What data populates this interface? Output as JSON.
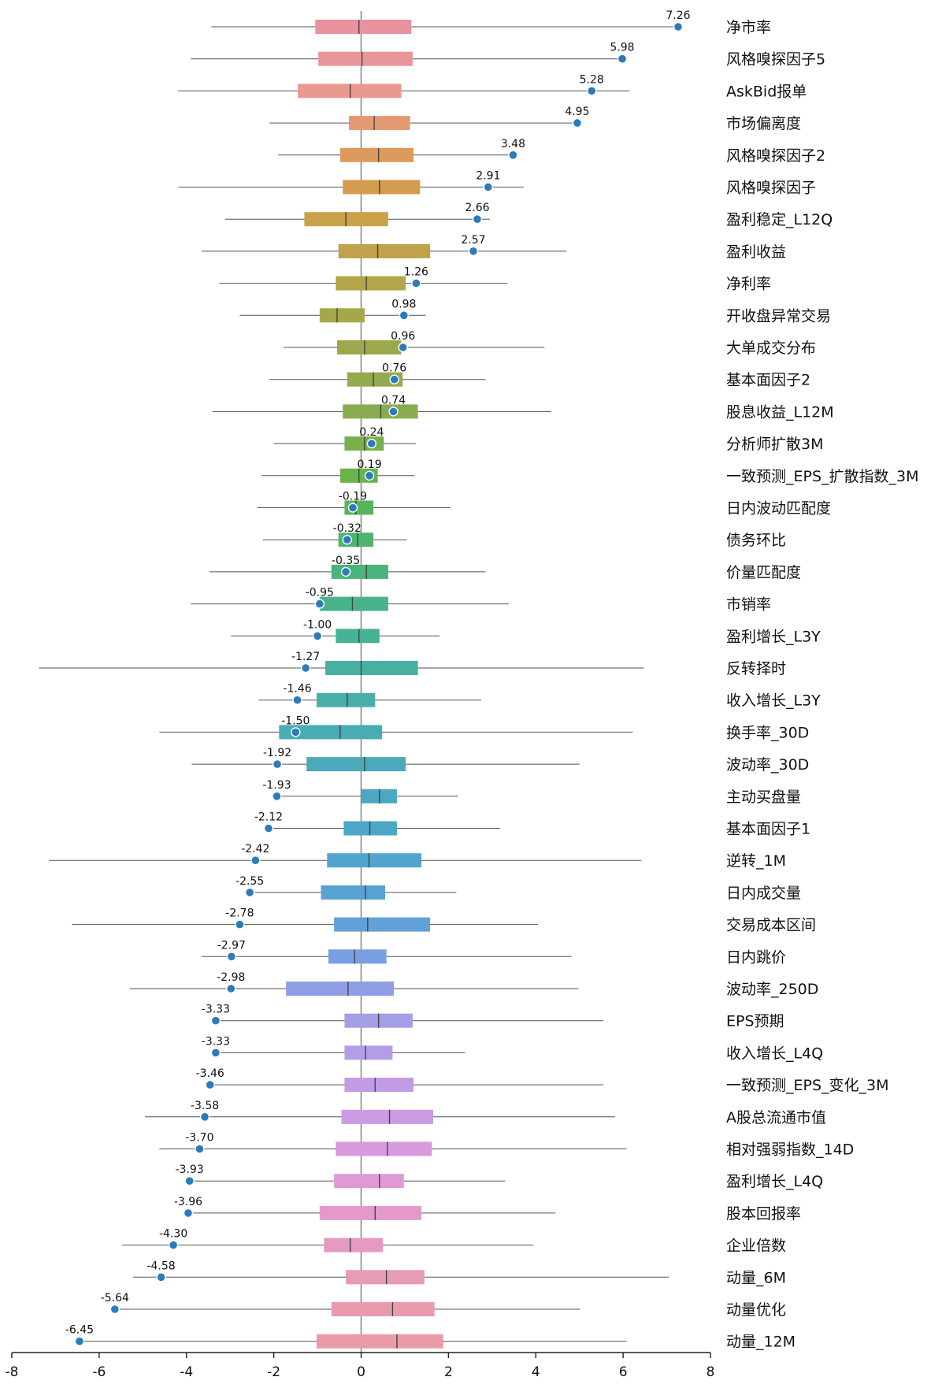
{
  "chart_data": {
    "type": "box",
    "orientation": "horizontal",
    "title": "",
    "xlabel": "",
    "ylabel": "",
    "xlim": [
      -8,
      8
    ],
    "xticks": [
      -8,
      -6,
      -4,
      -2,
      0,
      2,
      4,
      6,
      8
    ],
    "xtick_labels": [
      "-8",
      "-6",
      "-4",
      "-2",
      "0",
      "2",
      "4",
      "6",
      "8"
    ],
    "reference_line": 0,
    "marker_color": "#2b7bba",
    "categories": [
      {
        "name": "净市率",
        "value": 7.26,
        "label": "7.26",
        "whisker_low": -3.43,
        "q1": -1.05,
        "median": -0.05,
        "q3": 1.15,
        "whisker_high": 7.26,
        "color": "#e8939f"
      },
      {
        "name": "风格嗅探因子5",
        "value": 5.98,
        "label": "5.98",
        "whisker_low": -3.9,
        "q1": -0.98,
        "median": 0.02,
        "q3": 1.18,
        "whisker_high": 5.98,
        "color": "#e8969a"
      },
      {
        "name": "AskBid报单",
        "value": 5.28,
        "label": "5.28",
        "whisker_low": -4.2,
        "q1": -1.45,
        "median": -0.25,
        "q3": 0.92,
        "whisker_high": 6.15,
        "color": "#e99a8c"
      },
      {
        "name": "市场偏离度",
        "value": 4.95,
        "label": "4.95",
        "whisker_low": -2.1,
        "q1": -0.28,
        "median": 0.3,
        "q3": 1.12,
        "whisker_high": 4.95,
        "color": "#e39a72"
      },
      {
        "name": "风格嗅探因子2",
        "value": 3.48,
        "label": "3.48",
        "whisker_low": -1.9,
        "q1": -0.48,
        "median": 0.4,
        "q3": 1.2,
        "whisker_high": 3.48,
        "color": "#dd9a5c"
      },
      {
        "name": "风格嗅探因子",
        "value": 2.91,
        "label": "2.91",
        "whisker_low": -4.18,
        "q1": -0.42,
        "median": 0.42,
        "q3": 1.35,
        "whisker_high": 3.72,
        "color": "#d49c4f"
      },
      {
        "name": "盈利稳定_L12Q",
        "value": 2.66,
        "label": "2.66",
        "whisker_low": -3.12,
        "q1": -1.3,
        "median": -0.35,
        "q3": 0.62,
        "whisker_high": 2.95,
        "color": "#c9a24a"
      },
      {
        "name": "盈利收益",
        "value": 2.57,
        "label": "2.57",
        "whisker_low": -3.65,
        "q1": -0.52,
        "median": 0.38,
        "q3": 1.58,
        "whisker_high": 4.7,
        "color": "#bfa24a"
      },
      {
        "name": "净利率",
        "value": 1.26,
        "label": "1.26",
        "whisker_low": -3.25,
        "q1": -0.58,
        "median": 0.12,
        "q3": 1.02,
        "whisker_high": 3.35,
        "color": "#b2a54a"
      },
      {
        "name": "开收盘异常交易",
        "value": 0.98,
        "label": "0.98",
        "whisker_low": -2.78,
        "q1": -0.95,
        "median": -0.55,
        "q3": 0.08,
        "whisker_high": 1.48,
        "color": "#a6a74b"
      },
      {
        "name": "大单成交分布",
        "value": 0.96,
        "label": "0.96",
        "whisker_low": -1.78,
        "q1": -0.55,
        "median": 0.08,
        "q3": 0.92,
        "whisker_high": 4.2,
        "color": "#9da84c"
      },
      {
        "name": "基本面因子2",
        "value": 0.76,
        "label": "0.76",
        "whisker_low": -2.1,
        "q1": -0.32,
        "median": 0.28,
        "q3": 0.95,
        "whisker_high": 2.85,
        "color": "#93aa4e"
      },
      {
        "name": "股息收益_L12M",
        "value": 0.74,
        "label": "0.74",
        "whisker_low": -3.4,
        "q1": -0.42,
        "median": 0.45,
        "q3": 1.3,
        "whisker_high": 4.35,
        "color": "#88ac4f"
      },
      {
        "name": "分析师扩散3M",
        "value": 0.24,
        "label": "0.24",
        "whisker_low": -2.0,
        "q1": -0.38,
        "median": 0.08,
        "q3": 0.52,
        "whisker_high": 1.25,
        "color": "#79b04d"
      },
      {
        "name": "一致预测_EPS_扩散指数_3M",
        "value": 0.19,
        "label": "0.19",
        "whisker_low": -2.28,
        "q1": -0.48,
        "median": -0.05,
        "q3": 0.38,
        "whisker_high": 1.22,
        "color": "#68b34c"
      },
      {
        "name": "日内波动匹配度",
        "value": -0.19,
        "label": "-0.19",
        "whisker_low": -2.38,
        "q1": -0.38,
        "median": -0.12,
        "q3": 0.28,
        "whisker_high": 2.05,
        "color": "#57b45a"
      },
      {
        "name": "债务环比",
        "value": -0.32,
        "label": "-0.32",
        "whisker_low": -2.25,
        "q1": -0.52,
        "median": -0.08,
        "q3": 0.28,
        "whisker_high": 1.05,
        "color": "#4db56d"
      },
      {
        "name": "价量匹配度",
        "value": -0.35,
        "label": "-0.35",
        "whisker_low": -3.48,
        "q1": -0.68,
        "median": 0.12,
        "q3": 0.62,
        "whisker_high": 2.85,
        "color": "#4ab47c"
      },
      {
        "name": "市销率",
        "value": -0.95,
        "label": "-0.95",
        "whisker_low": -3.9,
        "q1": -0.95,
        "median": -0.2,
        "q3": 0.62,
        "whisker_high": 3.38,
        "color": "#48b38a"
      },
      {
        "name": "盈利增长_L3Y",
        "value": -1.0,
        "label": "-1.00",
        "whisker_low": -2.98,
        "q1": -0.58,
        "median": -0.05,
        "q3": 0.42,
        "whisker_high": 1.8,
        "color": "#47b195"
      },
      {
        "name": "反转择时",
        "value": -1.27,
        "label": "-1.27",
        "whisker_low": -7.38,
        "q1": -0.82,
        "median": 0.0,
        "q3": 1.3,
        "whisker_high": 6.48,
        "color": "#47b0a0"
      },
      {
        "name": "收入增长_L3Y",
        "value": -1.46,
        "label": "-1.46",
        "whisker_low": -2.35,
        "q1": -1.02,
        "median": -0.32,
        "q3": 0.32,
        "whisker_high": 2.75,
        "color": "#48aeaa"
      },
      {
        "name": "换手率_30D",
        "value": -1.5,
        "label": "-1.50",
        "whisker_low": -4.62,
        "q1": -1.88,
        "median": -0.48,
        "q3": 0.48,
        "whisker_high": 6.22,
        "color": "#49acb3"
      },
      {
        "name": "波动率_30D",
        "value": -1.92,
        "label": "-1.92",
        "whisker_low": -3.88,
        "q1": -1.25,
        "median": 0.08,
        "q3": 1.02,
        "whisker_high": 5.0,
        "color": "#4aaab9"
      },
      {
        "name": "主动买盘量",
        "value": -1.93,
        "label": "-1.93",
        "whisker_low": -1.93,
        "q1": 0.0,
        "median": 0.42,
        "q3": 0.82,
        "whisker_high": 2.22,
        "color": "#4ca8c0"
      },
      {
        "name": "基本面因子1",
        "value": -2.12,
        "label": "-2.12",
        "whisker_low": -2.12,
        "q1": -0.4,
        "median": 0.2,
        "q3": 0.82,
        "whisker_high": 3.18,
        "color": "#4ea6c7"
      },
      {
        "name": "逆转_1M",
        "value": -2.42,
        "label": "-2.42",
        "whisker_low": -7.15,
        "q1": -0.78,
        "median": 0.18,
        "q3": 1.38,
        "whisker_high": 6.42,
        "color": "#52a4cd"
      },
      {
        "name": "日内成交量",
        "value": -2.55,
        "label": "-2.55",
        "whisker_low": -2.55,
        "q1": -0.92,
        "median": 0.1,
        "q3": 0.55,
        "whisker_high": 2.18,
        "color": "#58a2d3"
      },
      {
        "name": "交易成本区间",
        "value": -2.78,
        "label": "-2.78",
        "whisker_low": -6.62,
        "q1": -0.62,
        "median": 0.15,
        "q3": 1.58,
        "whisker_high": 4.05,
        "color": "#62a0d8"
      },
      {
        "name": "日内跳价",
        "value": -2.97,
        "label": "-2.97",
        "whisker_low": -3.65,
        "q1": -0.75,
        "median": -0.15,
        "q3": 0.58,
        "whisker_high": 4.82,
        "color": "#7a9fe0"
      },
      {
        "name": "波动率_250D",
        "value": -2.98,
        "label": "-2.98",
        "whisker_low": -5.3,
        "q1": -1.72,
        "median": -0.3,
        "q3": 0.75,
        "whisker_high": 4.98,
        "color": "#8f9ee4"
      },
      {
        "name": "EPS预期",
        "value": -3.33,
        "label": "-3.33",
        "whisker_low": -3.33,
        "q1": -0.38,
        "median": 0.4,
        "q3": 1.18,
        "whisker_high": 5.55,
        "color": "#a49ee6"
      },
      {
        "name": "收入增长_L4Q",
        "value": -3.33,
        "label": "-3.33",
        "whisker_low": -3.33,
        "q1": -0.38,
        "median": 0.1,
        "q3": 0.72,
        "whisker_high": 2.38,
        "color": "#b39de7"
      },
      {
        "name": "一致预测_EPS_变化_3M",
        "value": -3.46,
        "label": "-3.46",
        "whisker_low": -3.46,
        "q1": -0.38,
        "median": 0.32,
        "q3": 1.2,
        "whisker_high": 5.55,
        "color": "#c19be6"
      },
      {
        "name": "A股总流通市值",
        "value": -3.58,
        "label": "-3.58",
        "whisker_low": -4.95,
        "q1": -0.45,
        "median": 0.65,
        "q3": 1.65,
        "whisker_high": 5.82,
        "color": "#cd9ae4"
      },
      {
        "name": "相对强弱指数_14D",
        "value": -3.7,
        "label": "-3.70",
        "whisker_low": -4.62,
        "q1": -0.58,
        "median": 0.6,
        "q3": 1.62,
        "whisker_high": 6.08,
        "color": "#d79adf"
      },
      {
        "name": "盈利增长_L4Q",
        "value": -3.93,
        "label": "-3.93",
        "whisker_low": -3.93,
        "q1": -0.62,
        "median": 0.42,
        "q3": 0.98,
        "whisker_high": 3.3,
        "color": "#df99d6"
      },
      {
        "name": "股本回报率",
        "value": -3.96,
        "label": "-3.96",
        "whisker_low": -3.96,
        "q1": -0.95,
        "median": 0.32,
        "q3": 1.38,
        "whisker_high": 4.45,
        "color": "#e39acb"
      },
      {
        "name": "企业倍数",
        "value": -4.3,
        "label": "-4.30",
        "whisker_low": -5.48,
        "q1": -0.85,
        "median": -0.25,
        "q3": 0.5,
        "whisker_high": 3.95,
        "color": "#e69abf"
      },
      {
        "name": "动量_6M",
        "value": -4.58,
        "label": "-4.58",
        "whisker_low": -5.22,
        "q1": -0.35,
        "median": 0.58,
        "q3": 1.45,
        "whisker_high": 7.05,
        "color": "#e79bb5"
      },
      {
        "name": "动量优化",
        "value": -5.64,
        "label": "-5.64",
        "whisker_low": -5.64,
        "q1": -0.68,
        "median": 0.72,
        "q3": 1.68,
        "whisker_high": 5.02,
        "color": "#e89bae"
      },
      {
        "name": "动量_12M",
        "value": -6.45,
        "label": "-6.45",
        "whisker_low": -6.45,
        "q1": -1.02,
        "median": 0.82,
        "q3": 1.88,
        "whisker_high": 6.08,
        "color": "#e99ba8"
      }
    ]
  }
}
